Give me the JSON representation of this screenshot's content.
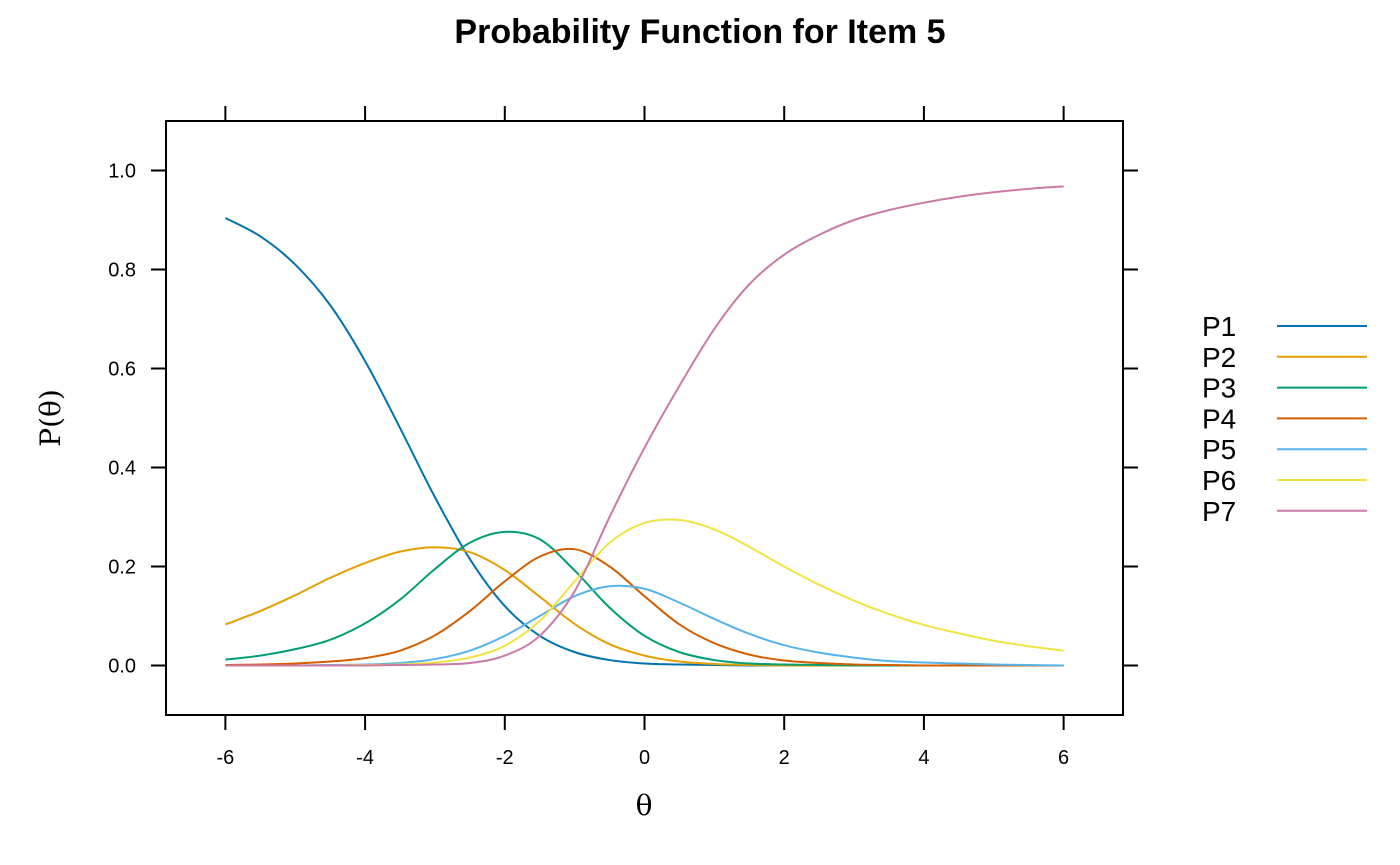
{
  "chart_data": {
    "type": "line",
    "title": "Probability Function for Item 5",
    "xlabel": "θ",
    "ylabel": "P(θ)",
    "xlim": [
      -6.85,
      6.85
    ],
    "ylim": [
      -0.1,
      1.1
    ],
    "xticks": [
      -6,
      -4,
      -2,
      0,
      2,
      4,
      6
    ],
    "xtick_labels": [
      "-6",
      "-4",
      "-2",
      "0",
      "2",
      "4",
      "6"
    ],
    "yticks": [
      0.0,
      0.2,
      0.4,
      0.6,
      0.8,
      1.0
    ],
    "ytick_labels": [
      "0.0",
      "0.2",
      "0.4",
      "0.6",
      "0.8",
      "1.0"
    ],
    "grid": false,
    "legend_position": "right",
    "x": [
      -6,
      -5.5,
      -5,
      -4.5,
      -4,
      -3.5,
      -3,
      -2.5,
      -2,
      -1.5,
      -1,
      -0.5,
      0,
      0.5,
      1,
      1.5,
      2,
      2.5,
      3,
      3.5,
      4,
      4.5,
      5,
      5.5,
      6
    ],
    "series": [
      {
        "name": "P1",
        "color": "#0072B2",
        "values": [
          0.904,
          0.867,
          0.81,
          0.728,
          0.615,
          0.48,
          0.34,
          0.215,
          0.12,
          0.06,
          0.027,
          0.011,
          0.004,
          0.002,
          0.001,
          0.0,
          0.0,
          0.0,
          0.0,
          0.0,
          0.0,
          0.0,
          0.0,
          0.0,
          0.0
        ]
      },
      {
        "name": "P2",
        "color": "#E69F00",
        "values": [
          0.083,
          0.11,
          0.142,
          0.177,
          0.207,
          0.23,
          0.239,
          0.229,
          0.193,
          0.139,
          0.084,
          0.043,
          0.02,
          0.008,
          0.003,
          0.001,
          0.0,
          0.0,
          0.0,
          0.0,
          0.0,
          0.0,
          0.0,
          0.0,
          0.0
        ]
      },
      {
        "name": "P3",
        "color": "#009E73",
        "values": [
          0.012,
          0.02,
          0.033,
          0.052,
          0.085,
          0.133,
          0.195,
          0.248,
          0.27,
          0.255,
          0.192,
          0.117,
          0.06,
          0.027,
          0.011,
          0.004,
          0.002,
          0.001,
          0.0,
          0.0,
          0.0,
          0.0,
          0.0,
          0.0,
          0.0
        ]
      },
      {
        "name": "P4",
        "color": "#D55E00",
        "values": [
          0.001,
          0.002,
          0.004,
          0.008,
          0.015,
          0.03,
          0.061,
          0.11,
          0.17,
          0.22,
          0.235,
          0.2,
          0.14,
          0.083,
          0.045,
          0.022,
          0.01,
          0.005,
          0.002,
          0.001,
          0.0,
          0.0,
          0.0,
          0.0,
          0.0
        ]
      },
      {
        "name": "P5",
        "color": "#56B4E9",
        "values": [
          0.0,
          0.0,
          0.0,
          0.001,
          0.002,
          0.005,
          0.013,
          0.03,
          0.06,
          0.1,
          0.14,
          0.16,
          0.155,
          0.127,
          0.094,
          0.064,
          0.041,
          0.026,
          0.016,
          0.009,
          0.006,
          0.004,
          0.002,
          0.001,
          0.0
        ]
      },
      {
        "name": "P6",
        "color": "#F0E442",
        "values": [
          0.0,
          0.0,
          0.0,
          0.0,
          0.001,
          0.002,
          0.006,
          0.016,
          0.04,
          0.09,
          0.17,
          0.248,
          0.288,
          0.294,
          0.275,
          0.24,
          0.2,
          0.163,
          0.131,
          0.104,
          0.082,
          0.065,
          0.05,
          0.039,
          0.03
        ]
      },
      {
        "name": "P7",
        "color": "#CC79A7",
        "values": [
          0.0,
          0.0,
          0.0,
          0.0,
          0.0,
          0.001,
          0.002,
          0.005,
          0.02,
          0.06,
          0.15,
          0.3,
          0.44,
          0.565,
          0.68,
          0.77,
          0.83,
          0.87,
          0.9,
          0.92,
          0.935,
          0.947,
          0.956,
          0.963,
          0.968
        ]
      }
    ]
  }
}
